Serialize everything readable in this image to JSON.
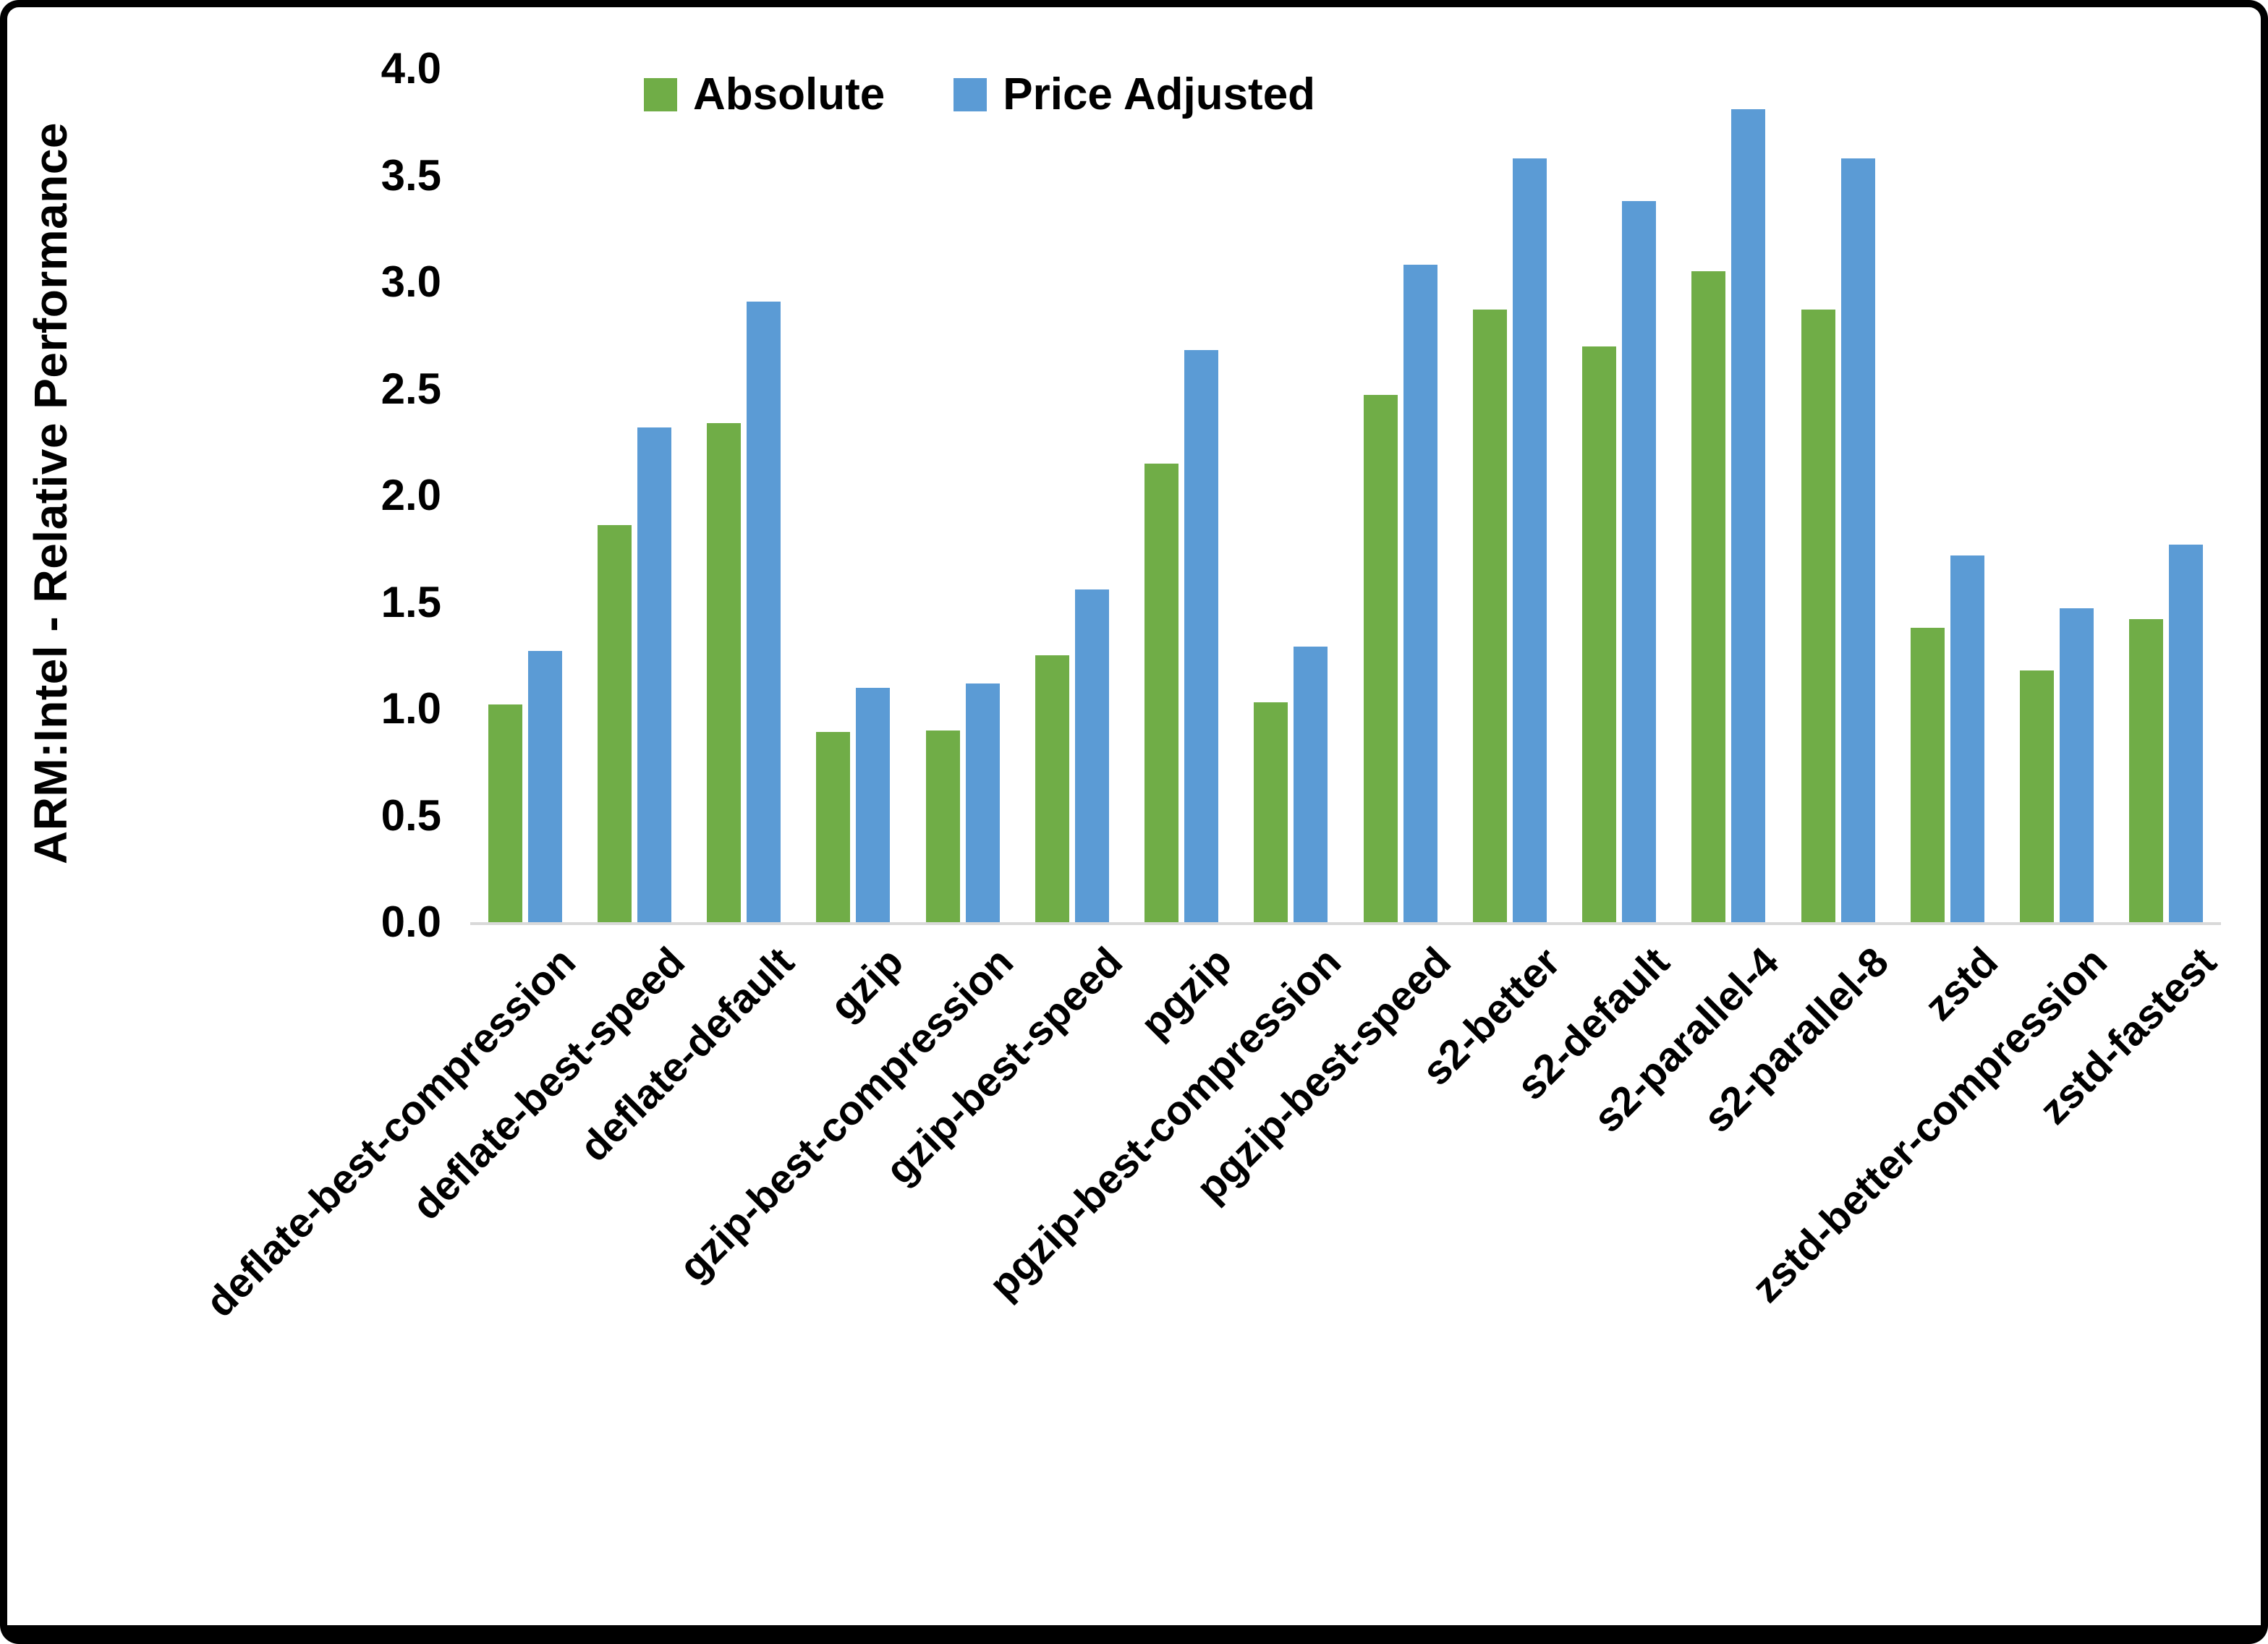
{
  "chart_data": {
    "type": "bar",
    "title": "",
    "ylabel": "ARM:Intel - Relative Performance",
    "xlabel": "",
    "ylim": [
      0,
      4
    ],
    "ytick_step": 0.5,
    "grid": false,
    "legend_position": "top-center",
    "axis_line_color": "#d9d9d9",
    "categories": [
      "deflate-best-compression",
      "deflate-best-speed",
      "deflate-default",
      "gzip",
      "gzip-best-compression",
      "gzip-best-speed",
      "pgzip",
      "pgzip-best-compression",
      "pgzip-best-speed",
      "s2-better",
      "s2-default",
      "s2-parallel-4",
      "s2-parallel-8",
      "zstd",
      "zstd-better-compression",
      "zstd-fastest"
    ],
    "series": [
      {
        "name": "Absolute",
        "color": "#70AD47",
        "values": [
          1.02,
          1.86,
          2.34,
          0.89,
          0.9,
          1.25,
          2.15,
          1.03,
          2.47,
          2.87,
          2.7,
          3.05,
          2.87,
          1.38,
          1.18,
          1.42
        ]
      },
      {
        "name": "Price Adjusted",
        "color": "#5B9BD5",
        "values": [
          1.27,
          2.32,
          2.91,
          1.1,
          1.12,
          1.56,
          2.68,
          1.29,
          3.08,
          3.58,
          3.38,
          3.81,
          3.58,
          1.72,
          1.47,
          1.77
        ]
      }
    ]
  }
}
